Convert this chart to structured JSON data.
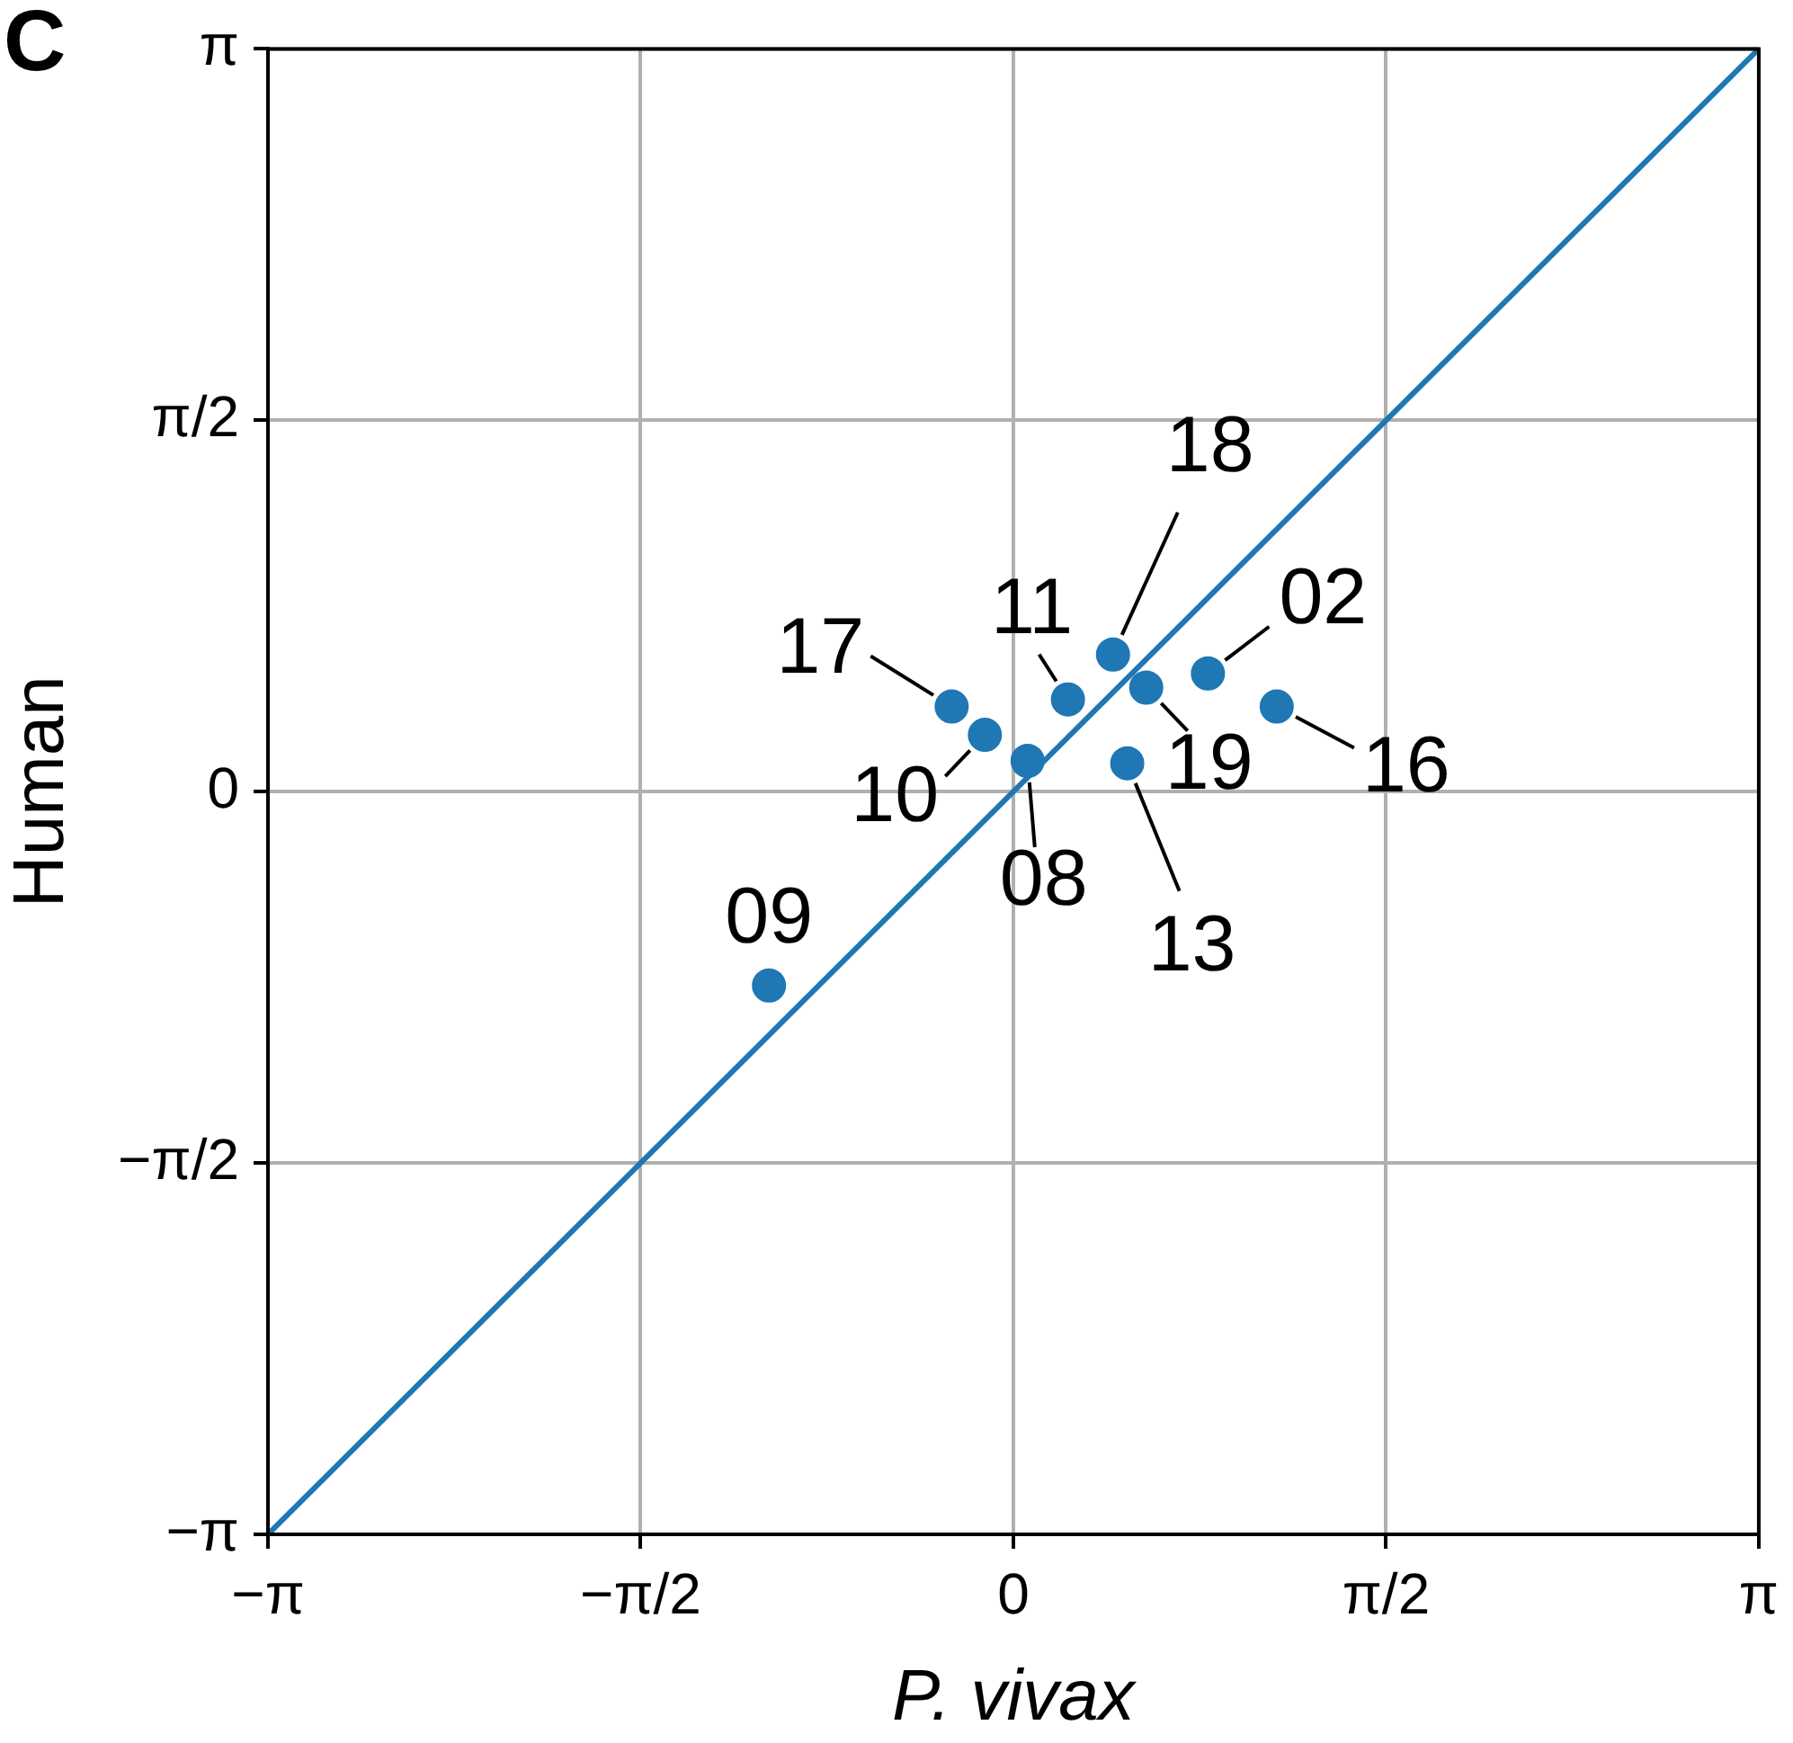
{
  "chart_data": {
    "type": "scatter",
    "xlabel": "P. vivax",
    "ylabel": "Human",
    "xlim": [
      -3.14159,
      3.14159
    ],
    "ylim": [
      -3.14159,
      3.14159
    ],
    "xticks": [
      {
        "value": -3.14159,
        "label": "−π"
      },
      {
        "value": -1.5708,
        "label": "−π/2"
      },
      0,
      {
        "value": 1.5708,
        "label": "π/2"
      },
      {
        "value": 3.14159,
        "label": "π"
      }
    ],
    "yticks": [
      {
        "value": -3.14159,
        "label": "−π"
      },
      {
        "value": -1.5708,
        "label": "−π/2"
      },
      0,
      {
        "value": 1.5708,
        "label": "π/2"
      },
      {
        "value": 3.14159,
        "label": "π"
      }
    ],
    "grid": true,
    "marker": "circle",
    "annotations": [
      "C",
      {
        "text": "09",
        "x": -1.03,
        "y": -0.82
      },
      {
        "text": "10",
        "x": -0.12,
        "y": 0.24
      },
      {
        "text": "17",
        "x": -0.26,
        "y": 0.36
      },
      {
        "text": "08",
        "x": 0.06,
        "y": 0.13
      },
      {
        "text": "11",
        "x": 0.23,
        "y": 0.39
      },
      {
        "text": "18",
        "x": 0.42,
        "y": 0.58
      },
      {
        "text": "19",
        "x": 0.56,
        "y": 0.44
      },
      {
        "text": "13",
        "x": 0.48,
        "y": 0.12
      },
      {
        "text": "02",
        "x": 0.82,
        "y": 0.5
      },
      {
        "text": "16",
        "x": 1.11,
        "y": 0.36
      }
    ],
    "series": [
      {
        "type": "line",
        "color": "#1f77b4",
        "x": [
          -3.14,
          3.14
        ],
        "values": [
          -3.14,
          3.14
        ],
        "marker": "none"
      },
      {
        "color": "#1f77b4",
        "x": [
          -1.03,
          -0.12,
          -0.26,
          0.06,
          0.23,
          0.42,
          0.56,
          0.48,
          0.82,
          1.11
        ],
        "values": [
          -0.82,
          0.24,
          0.36,
          0.13,
          0.39,
          0.58,
          0.44,
          0.12,
          0.5,
          0.36
        ]
      }
    ]
  }
}
